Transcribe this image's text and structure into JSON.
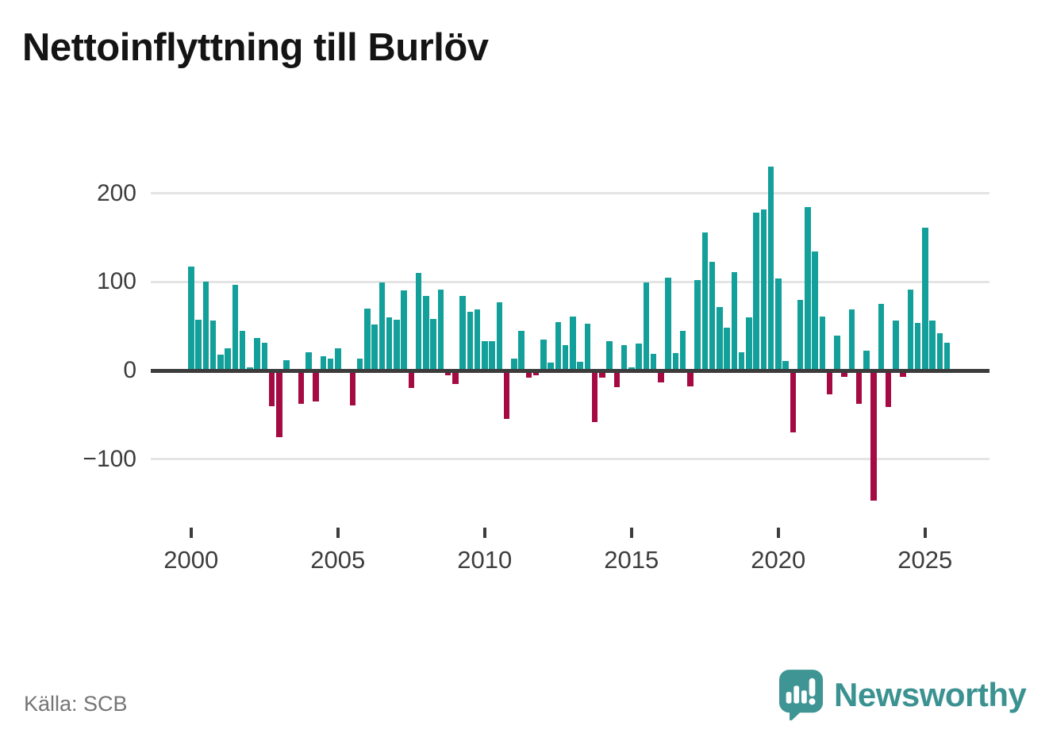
{
  "header": {
    "title": "Nettoinflyttning till Burlöv"
  },
  "footer": {
    "source": "Källa: SCB",
    "brand": "Newsworthy"
  },
  "chart_data": {
    "type": "bar",
    "title": "Nettoinflyttning till Burlöv",
    "xlabel": "",
    "ylabel": "",
    "x_tick_labels": [
      "2000",
      "2005",
      "2010",
      "2015",
      "2020",
      "2025"
    ],
    "y_tick_labels": [
      "200",
      "100",
      "0",
      "−100"
    ],
    "y_ticks": [
      200,
      100,
      0,
      -100
    ],
    "ylim": [
      -160,
      235
    ],
    "grid": "horizontal",
    "legend": "none",
    "period": "quarterly",
    "colors": {
      "positive": "#13a09a",
      "negative": "#a50b42"
    },
    "x": [
      "2000Q1",
      "2000Q2",
      "2000Q3",
      "2000Q4",
      "2001Q1",
      "2001Q2",
      "2001Q3",
      "2001Q4",
      "2002Q1",
      "2002Q2",
      "2002Q3",
      "2002Q4",
      "2003Q1",
      "2003Q2",
      "2003Q3",
      "2003Q4",
      "2004Q1",
      "2004Q2",
      "2004Q3",
      "2004Q4",
      "2005Q1",
      "2005Q2",
      "2005Q3",
      "2005Q4",
      "2006Q1",
      "2006Q2",
      "2006Q3",
      "2006Q4",
      "2007Q1",
      "2007Q2",
      "2007Q3",
      "2007Q4",
      "2008Q1",
      "2008Q2",
      "2008Q3",
      "2008Q4",
      "2009Q1",
      "2009Q2",
      "2009Q3",
      "2009Q4",
      "2010Q1",
      "2010Q2",
      "2010Q3",
      "2010Q4",
      "2011Q1",
      "2011Q2",
      "2011Q3",
      "2011Q4",
      "2012Q1",
      "2012Q2",
      "2012Q3",
      "2012Q4",
      "2013Q1",
      "2013Q2",
      "2013Q3",
      "2013Q4",
      "2014Q1",
      "2014Q2",
      "2014Q3",
      "2014Q4",
      "2015Q1",
      "2015Q2",
      "2015Q3",
      "2015Q4",
      "2016Q1",
      "2016Q2",
      "2016Q3",
      "2016Q4",
      "2017Q1",
      "2017Q2",
      "2017Q3",
      "2017Q4",
      "2018Q1",
      "2018Q2",
      "2018Q3",
      "2018Q4",
      "2019Q1",
      "2019Q2",
      "2019Q3",
      "2019Q4",
      "2020Q1",
      "2020Q2",
      "2020Q3",
      "2020Q4",
      "2021Q1",
      "2021Q2",
      "2021Q3",
      "2021Q4",
      "2022Q1",
      "2022Q2",
      "2022Q3",
      "2022Q4",
      "2023Q1",
      "2023Q2",
      "2023Q3",
      "2023Q4",
      "2024Q1",
      "2024Q2",
      "2024Q3",
      "2024Q4",
      "2025Q1",
      "2025Q2",
      "2025Q3",
      "2025Q4"
    ],
    "values": [
      117,
      57,
      100,
      56,
      18,
      25,
      97,
      45,
      4,
      37,
      31,
      -40,
      -75,
      12,
      0,
      -38,
      21,
      -35,
      16,
      13,
      25,
      2,
      -39,
      13,
      70,
      52,
      99,
      60,
      57,
      90,
      -20,
      110,
      84,
      58,
      91,
      -5,
      -15,
      84,
      66,
      69,
      33,
      33,
      77,
      -55,
      13,
      45,
      -8,
      -5,
      35,
      9,
      55,
      29,
      61,
      10,
      53,
      -58,
      -8,
      33,
      -19,
      29,
      4,
      30,
      99,
      19,
      -13,
      105,
      20,
      45,
      -18,
      102,
      156,
      123,
      72,
      48,
      111,
      21,
      60,
      178,
      182,
      230,
      104,
      11,
      -70,
      80,
      184,
      134,
      61,
      -27,
      39,
      -7,
      69,
      -38,
      22,
      -147,
      75,
      -41,
      56,
      -7,
      91,
      54,
      161,
      56,
      42,
      31
    ]
  }
}
